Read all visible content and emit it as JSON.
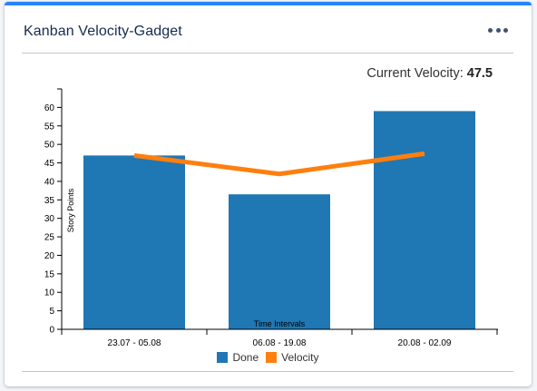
{
  "gadget": {
    "title": "Kanban Velocity-Gadget",
    "menu_icon": "more-horizontal-icon"
  },
  "summary": {
    "label": "Current Velocity:",
    "value": "47.5"
  },
  "colors": {
    "done": "#1f77b4",
    "velocity": "#ff7f0e",
    "accent": "#2684ff"
  },
  "chart_data": {
    "type": "bar",
    "categories": [
      "23.07 - 05.08",
      "06.08 - 19.08",
      "20.08 - 02.09"
    ],
    "series": [
      {
        "name": "Done",
        "type": "bar",
        "values": [
          47,
          36.5,
          59
        ]
      },
      {
        "name": "Velocity",
        "type": "line",
        "values": [
          47,
          42,
          47.5
        ]
      }
    ],
    "xlabel": "Time Intervals",
    "ylabel": "Story Points",
    "ylim": [
      0,
      65
    ],
    "yticks": [
      0,
      5,
      10,
      15,
      20,
      25,
      30,
      35,
      40,
      45,
      50,
      55,
      60
    ],
    "grid": false,
    "legend": "bottom-center"
  }
}
